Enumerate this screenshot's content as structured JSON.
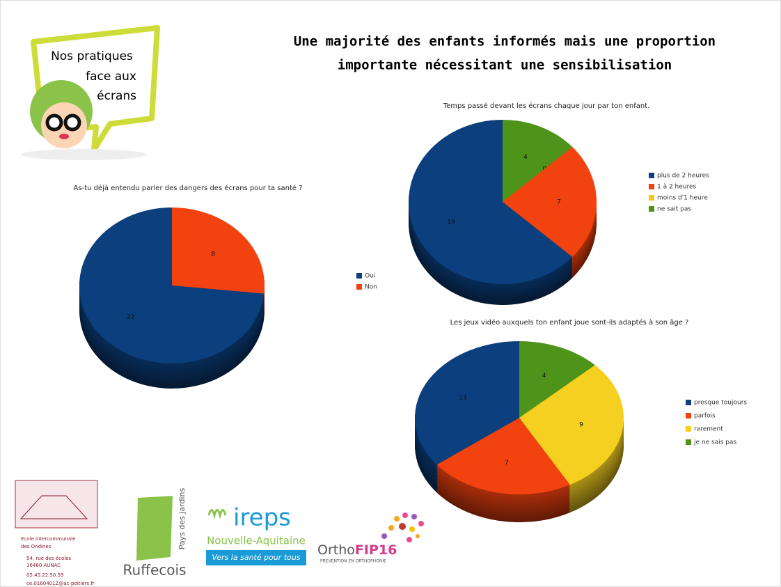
{
  "poster": {
    "bubble": [
      "Nos pratiques",
      "face aux",
      "écrans"
    ],
    "title": [
      "Une majorité des enfants informés mais une proportion",
      "importante nécessitant une sensibilisation"
    ],
    "logos": {
      "school": [
        "Ecole intercommunale",
        "des Ondines",
        "54, rue des écoles",
        "16460 AUNAC",
        "05.45.22.50.59",
        "ce.0160401Z@ac-poitiers.fr"
      ],
      "ruffecois": [
        "Ruffecois",
        "Pays des jardins"
      ],
      "ireps": [
        "ireps",
        "Nouvelle-Aquitaine",
        "Vers la santé pour tous"
      ],
      "ortho": [
        "Ortho",
        "FIP16",
        "PRÉVENTION EN ORTHOPHONIE"
      ]
    }
  },
  "chart_data": [
    {
      "type": "pie",
      "title": "As-tu déjà entendu parler des dangers des écrans pour ta santé ?",
      "categories": [
        "Oui",
        "Non"
      ],
      "values": [
        22,
        8
      ],
      "colors": [
        "#0b3f7d",
        "#f2420f"
      ]
    },
    {
      "type": "pie",
      "title": "Temps passé devant les écrans chaque jour par ton enfant.",
      "categories": [
        "plus de 2 heures",
        "1 à 2 heures",
        "moins d'1 heure",
        "ne sait pas"
      ],
      "values": [
        19,
        7,
        0,
        4
      ],
      "colors": [
        "#0b3f7d",
        "#f2420f",
        "#f5c51b",
        "#4e941a"
      ]
    },
    {
      "type": "pie",
      "title": "Les jeux vidéo auxquels ton enfant joue sont-ils adaptés à son âge ?",
      "categories": [
        "presque toujours",
        "parfois",
        "rarement",
        "je ne sais pas"
      ],
      "values": [
        11,
        7,
        9,
        4
      ],
      "colors": [
        "#0b3f7d",
        "#f2420f",
        "#f5d020",
        "#4e941a"
      ]
    }
  ]
}
